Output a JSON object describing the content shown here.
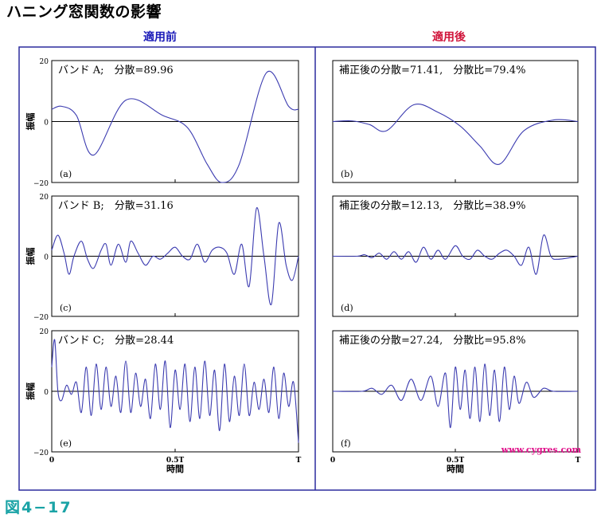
{
  "title": "ハニング窓関数の影響",
  "column_headers": {
    "left": "適用前",
    "right": "適用後"
  },
  "figure_label": "図4−17",
  "watermark": "www.cygres.com",
  "colors": {
    "frame": "#2b2b9e",
    "line": "#3b3bb0",
    "left_header": "#1a1ab8",
    "right_header": "#d0143a",
    "watermark": "#e0108a",
    "figure_label": "#1aa3a6"
  },
  "chart_data": [
    {
      "type": "line",
      "panel": "(a)",
      "annotation": "バンド A;　分散=89.96",
      "ylabel": "振幅",
      "ylim": [
        -20,
        20
      ],
      "yticks": [
        "20",
        "0",
        "−20"
      ],
      "x": [
        0,
        0.04,
        0.1,
        0.17,
        0.3,
        0.45,
        0.55,
        0.63,
        0.69,
        0.76,
        0.87,
        0.96,
        1.0
      ],
      "y": [
        4,
        5,
        2,
        -11,
        7,
        2,
        -2,
        -14,
        -20,
        -14,
        16,
        5,
        4
      ]
    },
    {
      "type": "line",
      "panel": "(b)",
      "annotation": "補正後の分散=71.41,　分散比=79.4%",
      "ylim": [
        -20,
        20
      ],
      "x": [
        0,
        0.08,
        0.15,
        0.22,
        0.33,
        0.43,
        0.52,
        0.6,
        0.68,
        0.78,
        0.9,
        1.0
      ],
      "y": [
        0,
        0.2,
        -1,
        -3,
        5.5,
        3,
        -1.5,
        -8,
        -14,
        -3,
        0.5,
        0
      ]
    },
    {
      "type": "line",
      "panel": "(c)",
      "annotation": "バンド B;　分散=31.16",
      "ylabel": "振幅",
      "ylim": [
        -20,
        20
      ],
      "yticks": [
        "20",
        "0",
        "−20"
      ],
      "x": [
        0,
        0.025,
        0.05,
        0.07,
        0.09,
        0.12,
        0.145,
        0.17,
        0.2,
        0.22,
        0.24,
        0.27,
        0.3,
        0.32,
        0.35,
        0.38,
        0.41,
        0.44,
        0.47,
        0.5,
        0.53,
        0.56,
        0.59,
        0.62,
        0.65,
        0.68,
        0.71,
        0.74,
        0.77,
        0.8,
        0.83,
        0.86,
        0.89,
        0.92,
        0.95,
        0.975,
        1.0
      ],
      "y": [
        2,
        7,
        1,
        -6,
        0,
        5,
        -1,
        -4,
        2,
        4,
        -3,
        4,
        -2,
        5,
        1,
        -3,
        0,
        -1,
        1,
        3,
        0,
        -1,
        4,
        -2,
        2,
        3,
        1,
        -6,
        4,
        -10,
        16,
        0,
        -16,
        11,
        -3,
        -8,
        0
      ]
    },
    {
      "type": "line",
      "panel": "(d)",
      "annotation": "補正後の分散=12.13,　分散比=38.9%",
      "ylim": [
        -20,
        20
      ],
      "x": [
        0,
        0.1,
        0.13,
        0.16,
        0.19,
        0.22,
        0.25,
        0.28,
        0.31,
        0.34,
        0.37,
        0.4,
        0.43,
        0.46,
        0.5,
        0.53,
        0.56,
        0.59,
        0.62,
        0.65,
        0.68,
        0.71,
        0.74,
        0.77,
        0.8,
        0.83,
        0.86,
        0.89,
        0.92,
        1.0
      ],
      "y": [
        0,
        0,
        0.5,
        -0.5,
        1,
        -1,
        1.5,
        -1,
        1.5,
        -2,
        3,
        -1,
        2,
        -1,
        3.5,
        0,
        -1,
        2,
        0,
        -1,
        1,
        2,
        0,
        -3,
        3,
        -6,
        7,
        0,
        -1,
        0
      ]
    },
    {
      "type": "line",
      "panel": "(e)",
      "annotation": "バンド C;　分散=28.44",
      "ylabel": "振幅",
      "ylim": [
        -20,
        20
      ],
      "yticks": [
        "20",
        "0",
        "−20"
      ],
      "x": [
        0,
        0.012,
        0.025,
        0.04,
        0.06,
        0.08,
        0.1,
        0.12,
        0.14,
        0.16,
        0.18,
        0.2,
        0.22,
        0.24,
        0.26,
        0.28,
        0.3,
        0.32,
        0.34,
        0.36,
        0.38,
        0.4,
        0.42,
        0.44,
        0.46,
        0.48,
        0.5,
        0.52,
        0.54,
        0.56,
        0.58,
        0.6,
        0.62,
        0.64,
        0.66,
        0.68,
        0.7,
        0.72,
        0.74,
        0.76,
        0.78,
        0.8,
        0.82,
        0.84,
        0.86,
        0.88,
        0.9,
        0.92,
        0.94,
        0.96,
        0.98,
        1.0
      ],
      "y": [
        8,
        17,
        0,
        -3,
        2,
        -1,
        3,
        -7,
        8,
        -8,
        9,
        -6,
        8,
        -5,
        5,
        -7,
        10,
        -7,
        6,
        -5,
        4,
        -9,
        9,
        -6,
        10,
        -12,
        7,
        -6,
        9,
        -10,
        8,
        -9,
        10,
        -8,
        7,
        -13,
        9,
        -10,
        5,
        -8,
        9,
        -8,
        3,
        -6,
        4,
        -7,
        8,
        -9,
        6,
        -5,
        3,
        -17
      ]
    },
    {
      "type": "line",
      "panel": "(f)",
      "annotation": "補正後の分散=27.24,　分散比=95.8%",
      "ylim": [
        -20,
        20
      ],
      "xticks": [
        "0",
        "0.5T",
        "T"
      ],
      "xlabel": "時間",
      "x": [
        0,
        0.12,
        0.16,
        0.2,
        0.24,
        0.28,
        0.32,
        0.36,
        0.4,
        0.43,
        0.46,
        0.48,
        0.5,
        0.52,
        0.54,
        0.56,
        0.58,
        0.6,
        0.62,
        0.64,
        0.66,
        0.68,
        0.7,
        0.72,
        0.74,
        0.76,
        0.79,
        0.82,
        0.86,
        0.9,
        1.0
      ],
      "y": [
        0,
        0,
        1,
        -1,
        2,
        -3,
        4,
        -3,
        5,
        -5,
        6,
        -12,
        8,
        -6,
        7,
        -9,
        8,
        -10,
        9,
        -8,
        7,
        -10,
        8,
        -6,
        5,
        -4,
        3,
        -2,
        1,
        0,
        0
      ]
    }
  ],
  "xaxis": {
    "xticks": [
      "0",
      "0.5T",
      "T"
    ],
    "xlabel": "時間"
  }
}
